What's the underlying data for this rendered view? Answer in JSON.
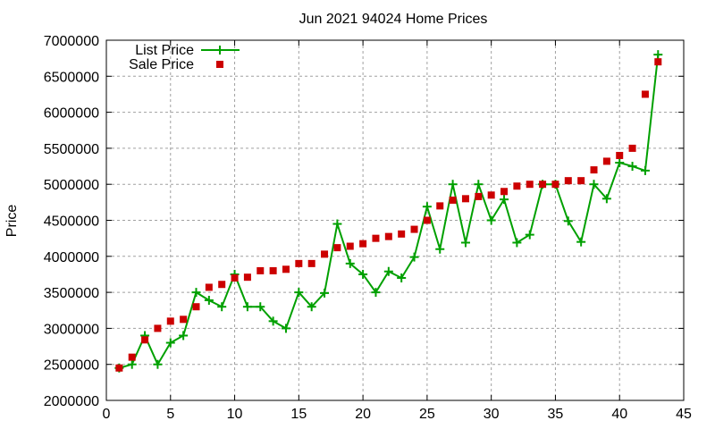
{
  "chart_data": {
    "type": "line",
    "title": "Jun 2021 94024 Home Prices",
    "xlabel": "",
    "ylabel": "Price",
    "xlim": [
      0,
      45
    ],
    "ylim": [
      2000000,
      7000000
    ],
    "xticks": [
      0,
      5,
      10,
      15,
      20,
      25,
      30,
      35,
      40,
      45
    ],
    "yticks": [
      2000000,
      2500000,
      3000000,
      3500000,
      4000000,
      4500000,
      5000000,
      5500000,
      6000000,
      6500000,
      7000000
    ],
    "grid": true,
    "legend_placement": "top-left",
    "x": [
      1,
      2,
      3,
      4,
      5,
      6,
      7,
      8,
      9,
      10,
      11,
      12,
      13,
      14,
      15,
      16,
      17,
      18,
      19,
      20,
      21,
      22,
      23,
      24,
      25,
      26,
      27,
      28,
      29,
      30,
      31,
      32,
      33,
      34,
      35,
      36,
      37,
      38,
      39,
      40,
      41,
      42,
      43
    ],
    "series": [
      {
        "name": "List Price",
        "style": "linespoints",
        "color": "#00a000",
        "values": [
          2450000,
          2500000,
          2900000,
          2500000,
          2800000,
          2900000,
          3500000,
          3390000,
          3300000,
          3750000,
          3300000,
          3300000,
          3100000,
          3000000,
          3500000,
          3300000,
          3490000,
          4450000,
          3900000,
          3750000,
          3500000,
          3790000,
          3700000,
          3990000,
          4690000,
          4100000,
          5000000,
          4190000,
          5000000,
          4500000,
          4790000,
          4190000,
          4300000,
          5000000,
          5000000,
          4490000,
          4200000,
          5000000,
          4800000,
          5300000,
          5250000,
          5190000,
          6800000
        ]
      },
      {
        "name": "Sale Price",
        "style": "points",
        "color": "#cc0000",
        "values": [
          2450000,
          2600000,
          2840000,
          3000000,
          3100000,
          3125000,
          3300000,
          3570000,
          3610000,
          3700000,
          3710000,
          3800000,
          3800000,
          3820000,
          3900000,
          3900000,
          4030000,
          4120000,
          4140000,
          4175000,
          4250000,
          4275000,
          4310000,
          4375000,
          4500000,
          4700000,
          4780000,
          4800000,
          4830000,
          4850000,
          4900000,
          4975000,
          5000000,
          5000000,
          5000000,
          5050000,
          5050000,
          5200000,
          5320000,
          5400000,
          5500000,
          6250000,
          6700000
        ]
      }
    ]
  }
}
